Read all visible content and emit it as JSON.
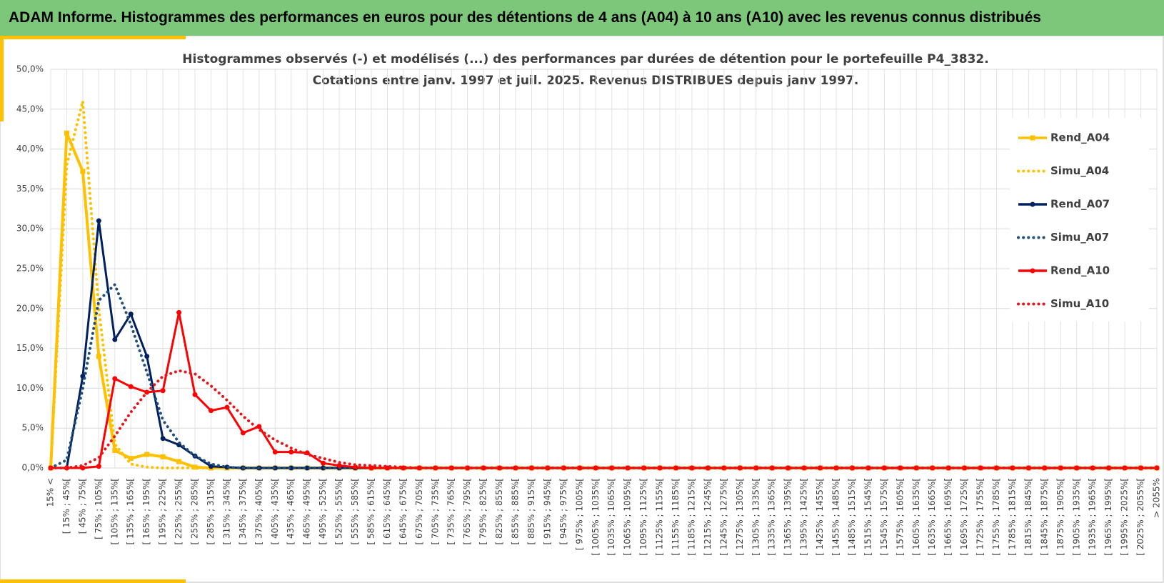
{
  "header": "ADAM Informe. Histogrammes des performances en euros pour des détentions de 4 ans (A04) à 10 ans (A10) avec les revenus connus distribués",
  "chart_data": {
    "type": "line",
    "title_lines": [
      "Histogrammes observés (-) et modélisés (...) des performances par durées de détention pour le portefeuille P4_3832.",
      "Cotations entre janv. 1997 et juil. 2025. Revenus DISTRIBUES depuis janv 1997."
    ],
    "categories": [
      "15% <",
      "[ 15% ; 45%[",
      "[ 45% ; 75%[",
      "[ 75% ; 105%[",
      "[ 105% ; 135%[",
      "[ 135% ; 165%[",
      "[ 165% ; 195%[",
      "[ 195% ; 225%[",
      "[ 225% ; 255%[",
      "[ 255% ; 285%[",
      "[ 285% ; 315%[",
      "[ 315% ; 345%[",
      "[ 345% ; 375%[",
      "[ 375% ; 405%[",
      "[ 405% ; 435%[",
      "[ 435% ; 465%[",
      "[ 465% ; 495%[",
      "[ 495% ; 525%[",
      "[ 525% ; 555%[",
      "[ 555% ; 585%[",
      "[ 585% ; 615%[",
      "[ 615% ; 645%[",
      "[ 645% ; 675%[",
      "[ 675% ; 705%[",
      "[ 705% ; 735%[",
      "[ 735% ; 765%[",
      "[ 765% ; 795%[",
      "[ 795% ; 825%[",
      "[ 825% ; 855%[",
      "[ 855% ; 885%[",
      "[ 885% ; 915%[",
      "[ 915% ; 945%[",
      "[ 945% ; 975%[",
      "[ 975% ; 1005%[",
      "[ 1005% ; 1035%[",
      "[ 1035% ; 1065%[",
      "[ 1065% ; 1095%[",
      "[ 1095% ; 1125%[",
      "[ 1125% ; 1155%[",
      "[ 1155% ; 1185%[",
      "[ 1185% ; 1215%[",
      "[ 1215% ; 1245%[",
      "[ 1245% ; 1275%[",
      "[ 1275% ; 1305%[",
      "[ 1305% ; 1335%[",
      "[ 1335% ; 1365%[",
      "[ 1365% ; 1395%[",
      "[ 1395% ; 1425%[",
      "[ 1425% ; 1455%[",
      "[ 1455% ; 1485%[",
      "[ 1485% ; 1515%[",
      "[ 1515% ; 1545%[",
      "[ 1545% ; 1575%[",
      "[ 1575% ; 1605%[",
      "[ 1605% ; 1635%[",
      "[ 1635% ; 1665%[",
      "[ 1665% ; 1695%[",
      "[ 1695% ; 1725%[",
      "[ 1725% ; 1755%[",
      "[ 1755% ; 1785%[",
      "[ 1785% ; 1815%[",
      "[ 1815% ; 1845%[",
      "[ 1845% ; 1875%[",
      "[ 1875% ; 1905%[",
      "[ 1905% ; 1935%[",
      "[ 1935% ; 1965%[",
      "[ 1965% ; 1995%[",
      "[ 1995% ; 2025%[",
      "[ 2025% ; 2055%[",
      "> 2055%"
    ],
    "series": [
      {
        "name": "Rend_A04",
        "color": "#FFC000",
        "style": "solid",
        "marker": "square",
        "values": [
          0,
          42,
          37.2,
          14,
          2.2,
          1.2,
          1.7,
          1.4,
          0.8,
          0.1,
          0,
          0,
          0,
          0,
          0,
          0,
          0,
          0,
          0,
          0,
          0,
          0,
          0,
          0,
          0,
          0,
          0,
          0,
          0,
          0,
          0,
          0,
          0,
          0,
          0,
          0,
          0,
          0,
          0,
          0,
          0,
          0,
          0,
          0,
          0,
          0,
          0,
          0,
          0,
          0,
          0,
          0,
          0,
          0,
          0,
          0,
          0,
          0,
          0,
          0,
          0,
          0,
          0,
          0,
          0,
          0,
          0,
          0,
          0,
          0
        ]
      },
      {
        "name": "Simu_A04",
        "color": "#FFC000",
        "style": "dotted",
        "marker": "none",
        "values": [
          0,
          38,
          46,
          20,
          3,
          0.5,
          0.1,
          0,
          0,
          0,
          0,
          0,
          0,
          0,
          0,
          0,
          0,
          0,
          0,
          0,
          0,
          0,
          0,
          0,
          0,
          0,
          0,
          0,
          0,
          0,
          0,
          0,
          0,
          0,
          0,
          0,
          0,
          0,
          0,
          0,
          0,
          0,
          0,
          0,
          0,
          0,
          0,
          0,
          0,
          0,
          0,
          0,
          0,
          0,
          0,
          0,
          0,
          0,
          0,
          0,
          0,
          0,
          0,
          0,
          0,
          0,
          0,
          0,
          0,
          0
        ]
      },
      {
        "name": "Rend_A07",
        "color": "#002060",
        "style": "solid",
        "marker": "circle",
        "values": [
          0,
          0,
          11.5,
          31,
          16.1,
          19.3,
          14,
          3.7,
          2.9,
          1.5,
          0.2,
          0.1,
          0,
          0,
          0,
          0,
          0,
          0,
          0,
          0,
          0,
          0,
          0,
          0,
          0,
          0,
          0,
          0,
          0,
          0,
          0,
          0,
          0,
          0,
          0,
          0,
          0,
          0,
          0,
          0,
          0,
          0,
          0,
          0,
          0,
          0,
          0,
          0,
          0,
          0,
          0,
          0,
          0,
          0,
          0,
          0,
          0,
          0,
          0,
          0,
          0,
          0,
          0,
          0,
          0,
          0,
          0,
          0,
          0,
          0
        ]
      },
      {
        "name": "Simu_A07",
        "color": "#1F4E79",
        "style": "dotted",
        "marker": "none",
        "values": [
          0,
          1,
          10,
          21,
          23,
          18,
          12,
          6,
          3.2,
          1.5,
          0.5,
          0.1,
          0,
          0,
          0,
          0,
          0,
          0,
          0,
          0,
          0,
          0,
          0,
          0,
          0,
          0,
          0,
          0,
          0,
          0,
          0,
          0,
          0,
          0,
          0,
          0,
          0,
          0,
          0,
          0,
          0,
          0,
          0,
          0,
          0,
          0,
          0,
          0,
          0,
          0,
          0,
          0,
          0,
          0,
          0,
          0,
          0,
          0,
          0,
          0,
          0,
          0,
          0,
          0,
          0,
          0,
          0,
          0,
          0,
          0
        ]
      },
      {
        "name": "Rend_A10",
        "color": "#FF0000",
        "style": "solid",
        "marker": "circle",
        "values": [
          0,
          0,
          0,
          0.2,
          11.2,
          10.2,
          9.5,
          9.7,
          19.5,
          9.2,
          7.2,
          7.6,
          4.4,
          5.2,
          2.0,
          2.0,
          1.9,
          0.6,
          0.3,
          0.1,
          0,
          0,
          0,
          0,
          0,
          0,
          0,
          0,
          0,
          0,
          0,
          0,
          0,
          0,
          0,
          0,
          0,
          0,
          0,
          0,
          0,
          0,
          0,
          0,
          0,
          0,
          0,
          0,
          0,
          0,
          0,
          0,
          0,
          0,
          0,
          0,
          0,
          0,
          0,
          0,
          0,
          0,
          0,
          0,
          0,
          0,
          0,
          0,
          0,
          0
        ]
      },
      {
        "name": "Simu_A10",
        "color": "#E8141B",
        "style": "dotted",
        "marker": "none",
        "values": [
          0,
          0,
          0.3,
          1.3,
          4,
          7,
          9.5,
          11.5,
          12.2,
          11.8,
          10.3,
          8.5,
          6.5,
          4.8,
          3.5,
          2.5,
          1.7,
          1.2,
          0.7,
          0.4,
          0.3,
          0.2,
          0.1,
          0,
          0,
          0,
          0,
          0,
          0,
          0,
          0,
          0,
          0,
          0,
          0,
          0,
          0,
          0,
          0,
          0,
          0,
          0,
          0,
          0,
          0,
          0,
          0,
          0,
          0,
          0,
          0,
          0,
          0,
          0,
          0,
          0,
          0,
          0,
          0,
          0,
          0,
          0,
          0,
          0,
          0,
          0,
          0,
          0,
          0,
          0
        ]
      }
    ],
    "ylim": [
      0,
      50
    ],
    "yticks": [
      {
        "value": 0,
        "label": "0,0%"
      },
      {
        "value": 5,
        "label": "5,0%"
      },
      {
        "value": 10,
        "label": "10,0%"
      },
      {
        "value": 15,
        "label": "15,0%"
      },
      {
        "value": 20,
        "label": "20,0%"
      },
      {
        "value": 25,
        "label": "25,0%"
      },
      {
        "value": 30,
        "label": "30,0%"
      },
      {
        "value": 35,
        "label": "35,0%"
      },
      {
        "value": 40,
        "label": "40,0%"
      },
      {
        "value": 45,
        "label": "45,0%"
      },
      {
        "value": 50,
        "label": "50,0%"
      }
    ],
    "grid": true,
    "legend": "right"
  }
}
